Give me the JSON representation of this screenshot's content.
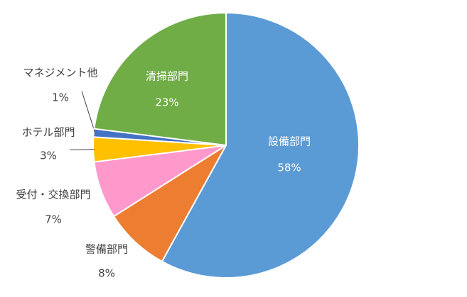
{
  "chart_data": {
    "type": "pie",
    "categories": [
      "設備部門",
      "警備部門",
      "受付・交換部門",
      "ホテル部門",
      "マネジメント他",
      "清掃部門"
    ],
    "values": [
      58,
      8,
      7,
      3,
      1,
      23
    ],
    "value_labels": [
      "58%",
      "8%",
      "7%",
      "3%",
      "1%",
      "23%"
    ],
    "colors": [
      "#5b9bd5",
      "#ed7d31",
      "#ff99cc",
      "#ffc000",
      "#4472c4",
      "#70ad47"
    ]
  }
}
